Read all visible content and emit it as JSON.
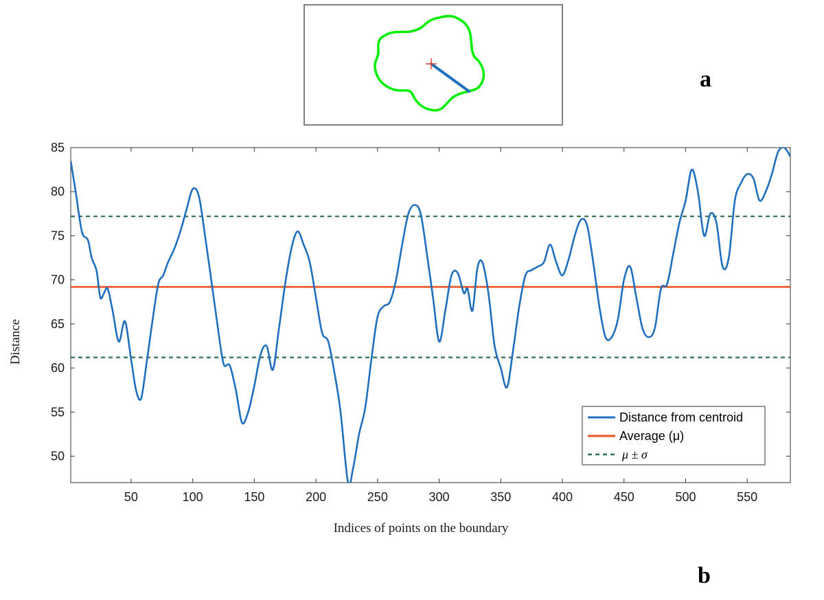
{
  "panels": {
    "a_label": "a",
    "b_label": "b"
  },
  "inset": {
    "boundary_color": "#00ee00",
    "radius_color": "#1f6fbf",
    "centroid_color": "#e8452c"
  },
  "chart_data": {
    "type": "line",
    "xlabel": "Indices of points on the boundary",
    "ylabel": "Distance",
    "xlim": [
      1,
      585
    ],
    "ylim": [
      47,
      85
    ],
    "xticks": [
      50,
      100,
      150,
      200,
      250,
      300,
      350,
      400,
      450,
      500,
      550
    ],
    "yticks": [
      50,
      55,
      60,
      65,
      70,
      75,
      80,
      85
    ],
    "grid": false,
    "legend_position": "bottom-right",
    "series": [
      {
        "name": "Distance from centroid",
        "color": "#1f6fbf",
        "x": [
          1,
          5,
          10,
          15,
          18,
          22,
          25,
          28,
          31,
          35,
          40,
          45,
          50,
          54,
          58,
          62,
          67,
          72,
          76,
          80,
          85,
          90,
          95,
          100,
          105,
          110,
          115,
          120,
          125,
          130,
          135,
          140,
          145,
          150,
          155,
          160,
          165,
          170,
          175,
          180,
          185,
          190,
          195,
          200,
          205,
          210,
          215,
          220,
          226,
          230,
          235,
          240,
          245,
          250,
          255,
          260,
          265,
          270,
          275,
          280,
          285,
          290,
          295,
          300,
          305,
          310,
          315,
          320,
          323,
          327,
          331,
          335,
          340,
          345,
          350,
          355,
          360,
          365,
          370,
          375,
          380,
          385,
          390,
          395,
          400,
          405,
          410,
          415,
          420,
          425,
          430,
          435,
          440,
          445,
          450,
          455,
          460,
          465,
          470,
          475,
          480,
          485,
          490,
          495,
          500,
          505,
          510,
          515,
          520,
          525,
          530,
          535,
          540,
          545,
          550,
          555,
          560,
          565,
          570,
          575,
          580,
          585
        ],
        "y": [
          83.5,
          80,
          75.5,
          74.5,
          72.5,
          71,
          68,
          68.5,
          69,
          66.5,
          63,
          65.3,
          61,
          57.5,
          56.5,
          60,
          65,
          69.5,
          70.5,
          72,
          73.5,
          75.5,
          78,
          80.3,
          79.5,
          75,
          70,
          65,
          60.5,
          60.3,
          57.5,
          53.8,
          55,
          58,
          61.5,
          62.5,
          59.8,
          64.5,
          69.5,
          73.5,
          75.5,
          74,
          72,
          68,
          64,
          63,
          59.5,
          55,
          47,
          48.5,
          52.5,
          55.5,
          61,
          65.8,
          67,
          67.5,
          70,
          74,
          77.5,
          78.5,
          77.5,
          73,
          68,
          63,
          66.5,
          70.5,
          70.8,
          68.5,
          69,
          66.5,
          71.3,
          72,
          68.5,
          62.5,
          60,
          57.8,
          62,
          67,
          70.5,
          71.1,
          71.5,
          72,
          74,
          72,
          70.5,
          72.3,
          75,
          76.8,
          76.2,
          72,
          67,
          63.5,
          63.5,
          65.5,
          70,
          71.5,
          68,
          64.5,
          63.5,
          64.5,
          69,
          69.5,
          73,
          76.5,
          79,
          82.5,
          80,
          75,
          77.5,
          76.5,
          71.5,
          72.5,
          79,
          81,
          82,
          81.5,
          79,
          80,
          82,
          84.5,
          85,
          84
        ]
      },
      {
        "name": "Average  (μ)",
        "color": "#e8531f",
        "y_constant": 69.2
      },
      {
        "name": "μ ± σ",
        "color": "#2f6f4f",
        "style": "dashed",
        "y_constant_band": [
          61.2,
          77.2
        ]
      }
    ]
  }
}
